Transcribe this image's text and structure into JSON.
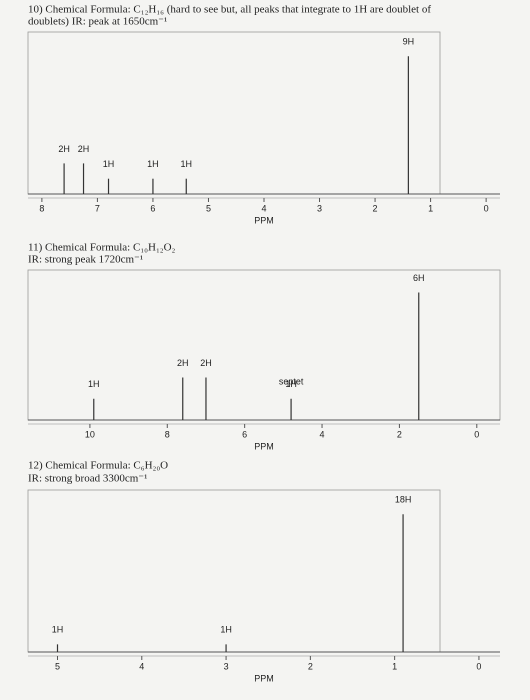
{
  "chart_data": [
    {
      "type": "stem",
      "title": "10) Chemical Formula: C₁₂H₁₆ (hard to see but, all peaks that integrate to 1H are doublet of",
      "subtitle": "doublets)  IR: peak at 1650cm⁻¹",
      "x": [
        7.6,
        7.25,
        6.8,
        6.0,
        5.4,
        1.4
      ],
      "values": [
        2,
        2,
        1,
        1,
        1,
        9
      ],
      "value_labels": [
        "2H",
        "2H",
        "1H",
        "1H",
        "1H",
        "9H"
      ],
      "xlim": [
        8.25,
        -0.25
      ],
      "xticks": [
        8,
        7,
        6,
        5,
        4,
        3,
        2,
        1,
        0
      ],
      "xlabel": "PPM"
    },
    {
      "type": "stem",
      "title": "11) Chemical Formula: C₁₀H₁₂O₂",
      "subtitle": "IR: strong peak 1720cm⁻¹",
      "x": [
        9.9,
        7.6,
        7.0,
        4.8,
        1.5
      ],
      "values": [
        1,
        2,
        2,
        1,
        6
      ],
      "value_labels": [
        "1H",
        "2H",
        "2H",
        "1H",
        "6H"
      ],
      "annotations": [
        {
          "text": "septet",
          "x": 4.8
        }
      ],
      "xlim": [
        11.6,
        -0.6
      ],
      "xticks": [
        10,
        8,
        6,
        4,
        2,
        0
      ],
      "xlabel": "PPM"
    },
    {
      "type": "stem",
      "title": "12) Chemical Formula: C₆H₂₀O",
      "subtitle": "IR: strong broad 3300cm⁻¹",
      "x": [
        5.0,
        3.0,
        0.9
      ],
      "values": [
        1,
        1,
        18
      ],
      "value_labels": [
        "1H",
        "1H",
        "18H"
      ],
      "xlim": [
        5.35,
        -0.25
      ],
      "xticks": [
        5,
        4,
        3,
        2,
        1,
        0
      ],
      "xlabel": "PPM"
    }
  ]
}
